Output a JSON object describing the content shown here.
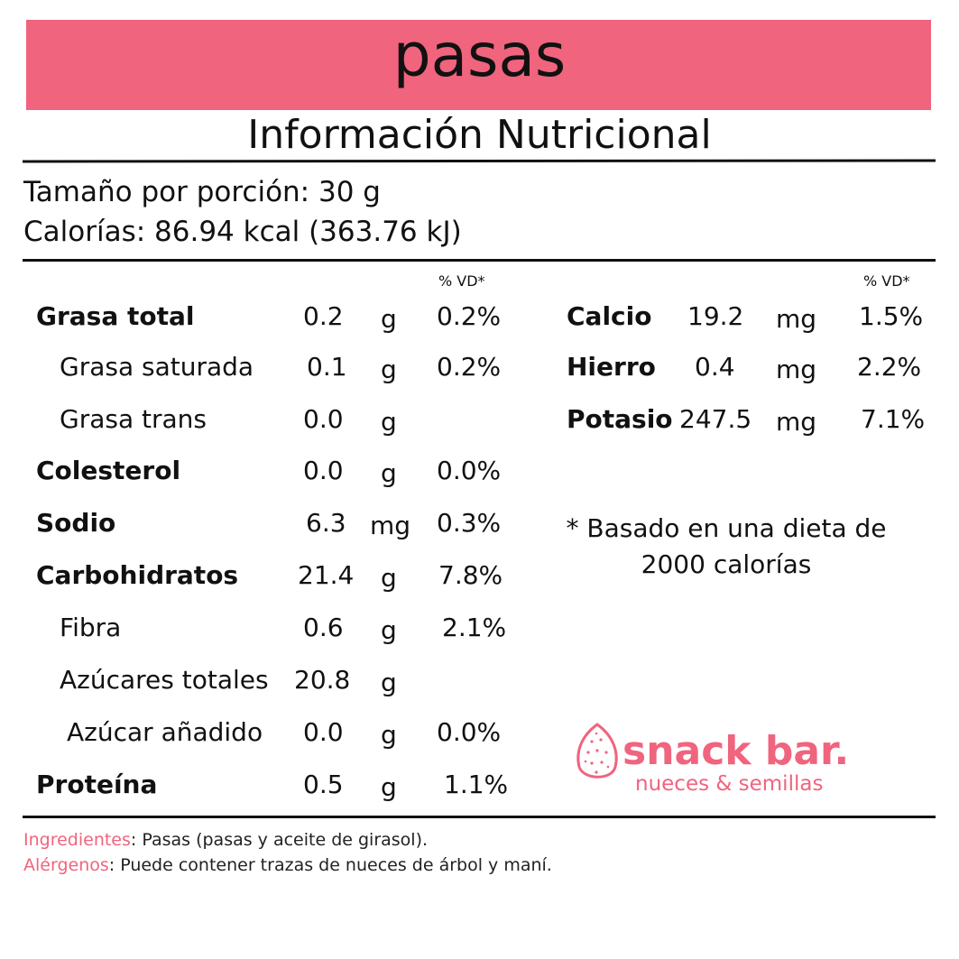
{
  "title": "pasas",
  "subtitle": "Información Nutricional",
  "serving": "Tamaño por porción: 30 g",
  "calories": "Calorías: 86.94 kcal (363.76 kJ)",
  "vd_header": "% VD*",
  "left_rows": [
    {
      "name": "Grasa total",
      "value": "0.2",
      "unit": "g",
      "vd": "0.2%"
    },
    {
      "name": "Grasa saturada",
      "value": "0.1",
      "unit": "g",
      "vd": "0.2%"
    },
    {
      "name": "Grasa trans",
      "value": "0.0",
      "unit": "g",
      "vd": ""
    },
    {
      "name": "Colesterol",
      "value": "0.0",
      "unit": "g",
      "vd": "0.0%"
    },
    {
      "name": "Sodio",
      "value": "6.3",
      "unit": "mg",
      "vd": "0.3%"
    },
    {
      "name": "Carbohidratos",
      "value": "21.4",
      "unit": "g",
      "vd": "7.8%"
    },
    {
      "name": "Fibra",
      "value": "0.6",
      "unit": "g",
      "vd": "2.1%"
    },
    {
      "name": "Azúcares totales",
      "value": "20.8",
      "unit": "g",
      "vd": ""
    },
    {
      "name": "Azúcar añadido",
      "value": "0.0",
      "unit": "g",
      "vd": "0.0%"
    },
    {
      "name": "Proteína",
      "value": "0.5",
      "unit": "g",
      "vd": "1.1%"
    }
  ],
  "right_rows": [
    {
      "name": "Calcio",
      "value": "19.2",
      "unit": "mg",
      "vd": "1.5%"
    },
    {
      "name": "Hierro",
      "value": "0.4",
      "unit": "mg",
      "vd": "2.2%"
    },
    {
      "name": "Potasio",
      "value": "247.5",
      "unit": "mg",
      "vd": "7.1%"
    }
  ],
  "note": "* Basado en una dieta de 2000 calorías",
  "brand": {
    "name": "snack bar.",
    "tagline": "nueces & semillas"
  },
  "footer": {
    "ingredients_label": "Ingredientes",
    "ingredients_text": ": Pasas (pasas y aceite de girasol).",
    "allergens_label": "Alérgenos",
    "allergens_text": ": Puede contener trazas de nueces de árbol y maní."
  },
  "colors": {
    "accent": "#f0647e",
    "text": "#111111"
  }
}
